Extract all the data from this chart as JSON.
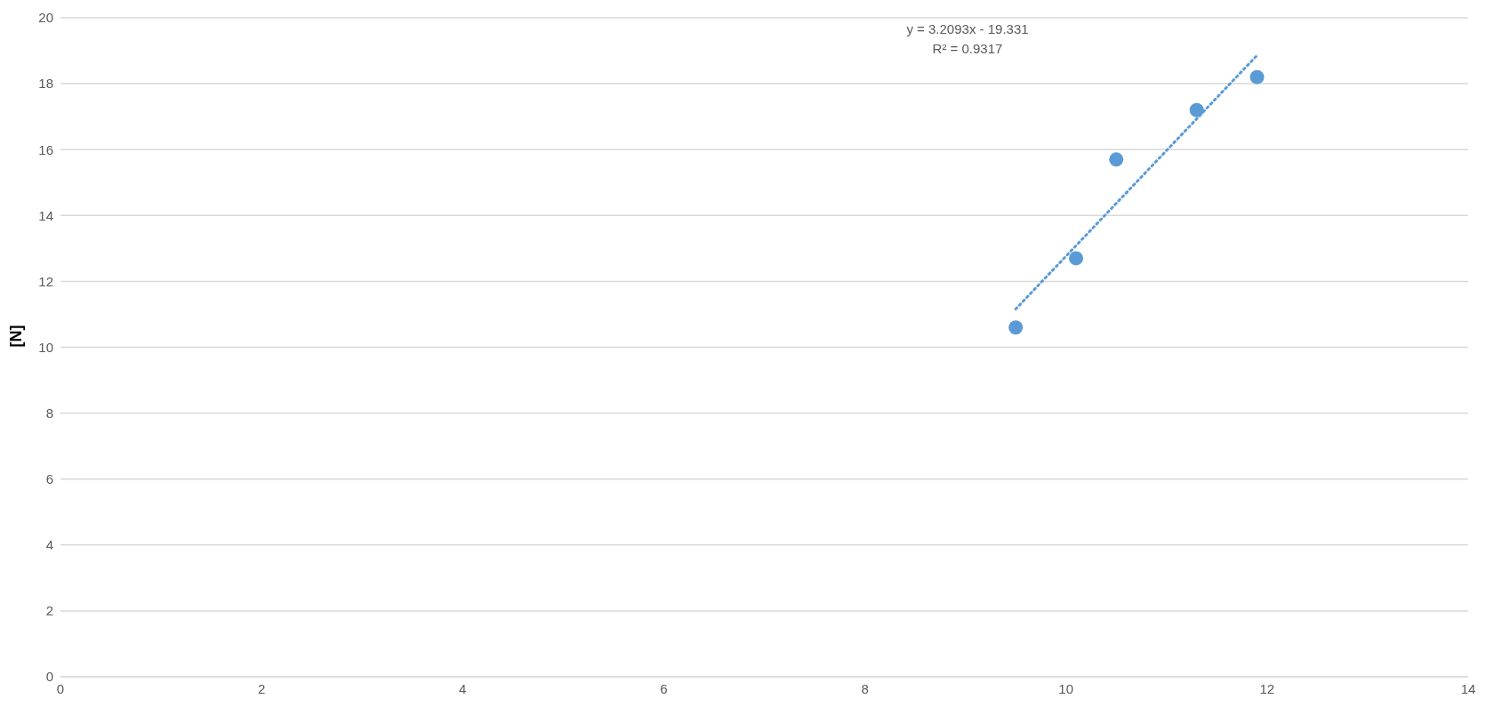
{
  "chart_data": {
    "type": "scatter",
    "ylabel": "[N]",
    "xlim": [
      0,
      14
    ],
    "xticks": [
      0,
      2,
      4,
      6,
      8,
      10,
      12,
      14
    ],
    "ylim": [
      0,
      20
    ],
    "yticks": [
      0,
      2,
      4,
      6,
      8,
      10,
      12,
      14,
      16,
      18,
      20
    ],
    "grid": "y",
    "marker": "circle",
    "annotations": [
      "y = 3.2093x - 19.331",
      "R² = 0.9317"
    ],
    "series": [
      {
        "color": "#5b9bd5",
        "x": [
          9.5,
          10.1,
          10.5,
          11.3,
          11.9
        ],
        "values": [
          10.6,
          12.7,
          15.7,
          17.2,
          18.2
        ]
      },
      {
        "type": "line",
        "color": "#5b9bd5",
        "line_style": "dotted",
        "marker": "none",
        "x": [
          9.5,
          11.9
        ],
        "values": [
          11.16,
          18.86
        ]
      }
    ]
  }
}
